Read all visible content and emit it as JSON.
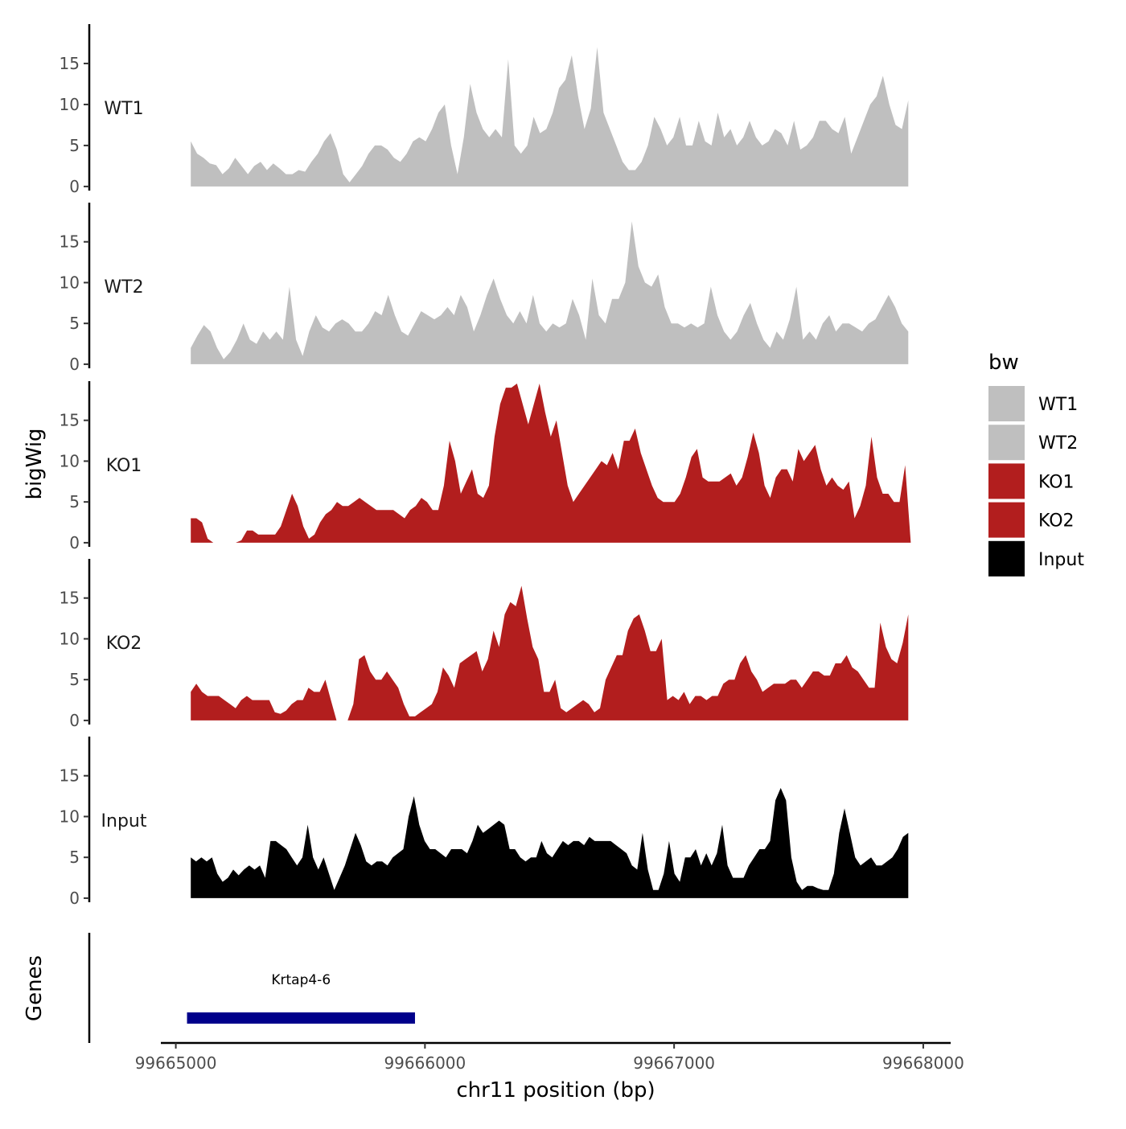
{
  "chart_data": {
    "type": "area",
    "ylabel": "bigWig",
    "xlabel": "chr11 position (bp)",
    "xlim": [
      99664940,
      99668110
    ],
    "ylim": [
      -0.5,
      19.8
    ],
    "y_ticks": [
      "0",
      "5",
      "10",
      "15"
    ],
    "x_ticks": [
      "99665000",
      "99666000",
      "99667000",
      "99668000"
    ],
    "genes_label": "Genes",
    "legend": {
      "title": "bw",
      "items": [
        {
          "label": "WT1",
          "color": "#bfbfbf"
        },
        {
          "label": "WT2",
          "color": "#bfbfbf"
        },
        {
          "label": "KO1",
          "color": "#b21e1e"
        },
        {
          "label": "KO2",
          "color": "#b21e1e"
        },
        {
          "label": "Input",
          "color": "#000000"
        }
      ]
    },
    "series": [
      {
        "name": "WT1",
        "color": "#bfbfbf",
        "x_start": 99665060,
        "x_end": 99667940,
        "values": [
          5.5,
          4,
          3.5,
          2.8,
          2.6,
          1.5,
          2.2,
          3.5,
          2.5,
          1.5,
          2.5,
          3,
          2,
          2.8,
          2.2,
          1.5,
          1.5,
          2,
          1.8,
          3,
          4,
          5.5,
          6.5,
          4.5,
          1.5,
          0.5,
          1.5,
          2.5,
          4,
          5,
          5,
          4.5,
          3.5,
          3,
          4,
          5.5,
          6,
          5.5,
          7,
          9,
          10,
          5,
          1.5,
          6,
          12.5,
          9,
          7,
          6,
          7,
          6,
          15.5,
          5,
          4,
          5,
          8.5,
          6.5,
          7,
          9,
          12,
          13,
          16,
          11,
          7,
          9.5,
          17,
          9,
          7,
          5,
          3,
          2,
          2,
          3,
          5,
          8.5,
          7,
          5,
          6,
          8.5,
          5,
          5,
          8,
          5.5,
          5,
          9,
          6,
          7,
          5,
          6,
          8,
          6,
          5,
          5.5,
          7,
          6.5,
          5,
          8,
          4.5,
          5,
          6,
          8,
          8,
          7,
          6.5,
          8.5,
          4,
          6,
          8,
          10,
          11,
          13.5,
          10,
          7.5,
          7,
          10.5
        ]
      },
      {
        "name": "WT2",
        "color": "#bfbfbf",
        "x_start": 99665060,
        "x_end": 99667940,
        "values": [
          2,
          3.5,
          4.8,
          4,
          2,
          0.6,
          1.5,
          3,
          5,
          3,
          2.5,
          4,
          3,
          4,
          3,
          9.5,
          3,
          1,
          4,
          6,
          4.5,
          4,
          5,
          5.5,
          5,
          4,
          4,
          5,
          6.5,
          6,
          8.5,
          6,
          4,
          3.5,
          5,
          6.5,
          6,
          5.5,
          6,
          7,
          6,
          8.5,
          7,
          4,
          6,
          8.5,
          10.5,
          8,
          6,
          5,
          6.5,
          5,
          8.5,
          5,
          4,
          5,
          4.5,
          5,
          8,
          6,
          3,
          10.5,
          6,
          5,
          8,
          8,
          10,
          17.5,
          12,
          10,
          9.5,
          11,
          7,
          5,
          5,
          4.5,
          5,
          4.5,
          5,
          9.5,
          6,
          4,
          3,
          4,
          6,
          7.5,
          5,
          3,
          2,
          4,
          3,
          5.5,
          9.5,
          3,
          4,
          3,
          5,
          6,
          4,
          5,
          5,
          4.5,
          4,
          5,
          5.5,
          7,
          8.5,
          7,
          5,
          4
        ]
      },
      {
        "name": "KO1",
        "color": "#b21e1e",
        "x_start": 99665060,
        "x_end": 99667950,
        "values": [
          3,
          3,
          2.5,
          0.5,
          0,
          0,
          0,
          0,
          0,
          0.3,
          1.5,
          1.5,
          1,
          1,
          1,
          1,
          2,
          4,
          6,
          4.5,
          2,
          0.5,
          1,
          2.5,
          3.5,
          4,
          5,
          4.5,
          4.5,
          5,
          5.5,
          5,
          4.5,
          4,
          4,
          4,
          4,
          3.5,
          3,
          4,
          4.5,
          5.5,
          5,
          4,
          4,
          7,
          12.5,
          10,
          6,
          7.5,
          9,
          6,
          5.5,
          7,
          13,
          17,
          19,
          19,
          19.5,
          17,
          14.5,
          17,
          19.5,
          16,
          13,
          15,
          11,
          7,
          5,
          6,
          7,
          8,
          9,
          10,
          9.5,
          11,
          9,
          12.5,
          12.5,
          14,
          11,
          9,
          7,
          5.5,
          5,
          5,
          5,
          6,
          8,
          10.5,
          11.5,
          8,
          7.5,
          7.5,
          7.5,
          8,
          8.5,
          7,
          8,
          10.5,
          13.5,
          11,
          7,
          5.5,
          8,
          9,
          9,
          7.5,
          11.5,
          10,
          11,
          12,
          9,
          7,
          8,
          7,
          6.5,
          7.5,
          3,
          4.5,
          7,
          13,
          8,
          6,
          6,
          5,
          5,
          9.5,
          0
        ]
      },
      {
        "name": "KO2",
        "color": "#b21e1e",
        "x_start": 99665060,
        "x_end": 99667940,
        "values": [
          3.5,
          4.5,
          3.5,
          3,
          3,
          3,
          2.5,
          2,
          1.5,
          2.5,
          3,
          2.5,
          2.5,
          2.5,
          2.5,
          1,
          0.8,
          1.2,
          2,
          2.5,
          2.5,
          4,
          3.5,
          3.5,
          5,
          2.5,
          0,
          0,
          0,
          2,
          7.5,
          8,
          6,
          5,
          5,
          6,
          5,
          4,
          2,
          0.5,
          0.5,
          1,
          1.5,
          2,
          3.5,
          6.5,
          5.5,
          4,
          7,
          7.5,
          8,
          8.5,
          6,
          7.5,
          11,
          9,
          13,
          14.5,
          14,
          16.5,
          12.5,
          9,
          7.5,
          3.5,
          3.5,
          5,
          1.5,
          1,
          1.5,
          2,
          2.5,
          2,
          1,
          1.5,
          5,
          6.5,
          8,
          8,
          11,
          12.5,
          13,
          11,
          8.5,
          8.5,
          10,
          2.5,
          3,
          2.5,
          3.5,
          2,
          3,
          3,
          2.5,
          3,
          3,
          4.5,
          5,
          5,
          7,
          8,
          6,
          5,
          3.5,
          4,
          4.5,
          4.5,
          4.5,
          5,
          5,
          4,
          5,
          6,
          6,
          5.5,
          5.5,
          7,
          7,
          8,
          6.5,
          6,
          5,
          4,
          4,
          12,
          9,
          7.5,
          7,
          9.5,
          13
        ]
      },
      {
        "name": "Input",
        "color": "#000000",
        "x_start": 99665060,
        "x_end": 99667940,
        "values": [
          5,
          4.5,
          5,
          4.5,
          5,
          3,
          2,
          2.5,
          3.5,
          2.8,
          3.5,
          4,
          3.5,
          4,
          2.5,
          7,
          7,
          6.5,
          6,
          5,
          4,
          5,
          9,
          5,
          3.5,
          5,
          3,
          1,
          2.5,
          4,
          6,
          8,
          6.5,
          4.5,
          4,
          4.5,
          4.5,
          4,
          5,
          5.5,
          6,
          10,
          12.5,
          9,
          7,
          6,
          6,
          5.5,
          5,
          6,
          6,
          6,
          5.5,
          7,
          9,
          8,
          8.5,
          9,
          9.5,
          9,
          6,
          6,
          5,
          4.5,
          5,
          5,
          7,
          5.5,
          5,
          6,
          7,
          6.5,
          7,
          7,
          6.5,
          7.5,
          7,
          7,
          7,
          7,
          6.5,
          6,
          5.5,
          4,
          3.5,
          8,
          3.5,
          1,
          1,
          3,
          7,
          3,
          2,
          5,
          5,
          6,
          4,
          5.5,
          4,
          5.5,
          9,
          4,
          2.5,
          2.5,
          2.5,
          4,
          5,
          6,
          6,
          7,
          12,
          13.5,
          12,
          5,
          2,
          1,
          1.5,
          1.5,
          1.2,
          1,
          1,
          3,
          8,
          11,
          8,
          5,
          4,
          4.5,
          5,
          4,
          4,
          4.5,
          5,
          6,
          7.5,
          8
        ]
      }
    ],
    "genes": [
      {
        "name": "Krtap4-6",
        "start": 99665045,
        "end": 99665960,
        "color": "#00008b"
      }
    ]
  }
}
